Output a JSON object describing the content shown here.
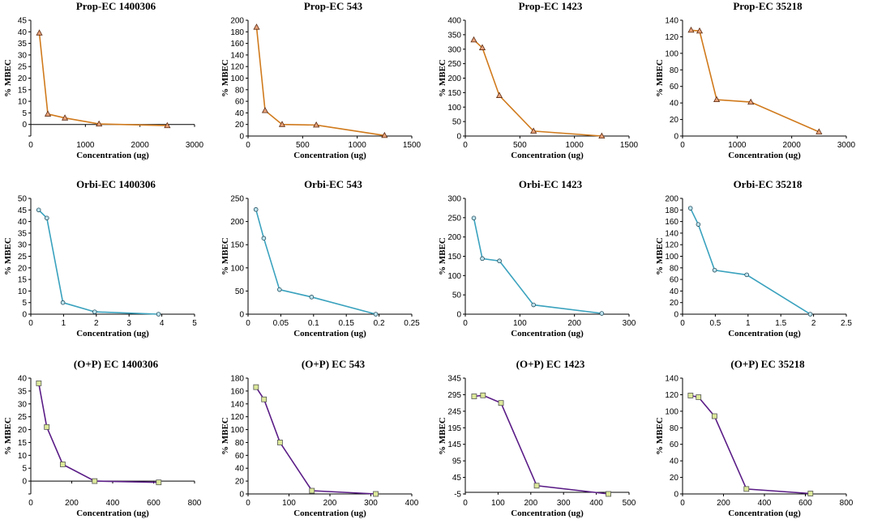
{
  "colors": {
    "prop": "#D07A1C",
    "orbi": "#3AA2BE",
    "op": "#5A1C86"
  },
  "chart_data": [
    {
      "type": "line",
      "title": "Prop-EC 1400306",
      "xlabel": "Concentration (ug)",
      "ylabel": "% MBEC",
      "marker": "triangle",
      "color": "prop",
      "xlim": [
        0,
        3000
      ],
      "xticks": [
        0,
        1000,
        2000,
        3000
      ],
      "ylim": [
        -5,
        45
      ],
      "yticks": [
        -5,
        0,
        5,
        10,
        15,
        20,
        25,
        30,
        35,
        40,
        45
      ],
      "ytick_labels": [
        "",
        "0",
        "5",
        "10",
        "15",
        "20",
        "25",
        "30",
        "35",
        "40",
        "45"
      ],
      "x": [
        156,
        312,
        625,
        1250,
        2500
      ],
      "y": [
        39.5,
        4.5,
        2.8,
        0.2,
        -0.5
      ]
    },
    {
      "type": "line",
      "title": "Prop-EC 543",
      "xlabel": "Concentration (ug)",
      "ylabel": "% MBEC",
      "marker": "triangle",
      "color": "prop",
      "xlim": [
        0,
        1500
      ],
      "xticks": [
        0,
        500,
        1000,
        1500
      ],
      "ylim": [
        0,
        200
      ],
      "yticks": [
        0,
        20,
        40,
        60,
        80,
        100,
        120,
        140,
        160,
        180,
        200
      ],
      "x": [
        78,
        156,
        312,
        625,
        1250
      ],
      "y": [
        188,
        44,
        20,
        19,
        1
      ]
    },
    {
      "type": "line",
      "title": "Prop-EC 1423",
      "xlabel": "Concentration (ug)",
      "ylabel": "% MBEC",
      "marker": "triangle",
      "color": "prop",
      "xlim": [
        0,
        1500
      ],
      "xticks": [
        0,
        500,
        1000,
        1500
      ],
      "ylim": [
        0,
        400
      ],
      "yticks": [
        0,
        50,
        100,
        150,
        200,
        250,
        300,
        350,
        400
      ],
      "x": [
        78,
        156,
        312,
        625,
        1250
      ],
      "y": [
        332,
        305,
        140,
        17,
        0
      ]
    },
    {
      "type": "line",
      "title": "Prop-EC 35218",
      "xlabel": "Concentration (ug)",
      "ylabel": "% MBEC",
      "marker": "triangle",
      "color": "prop",
      "xlim": [
        0,
        3000
      ],
      "xticks": [
        0,
        1000,
        2000,
        3000
      ],
      "ylim": [
        0,
        140
      ],
      "yticks": [
        0,
        20,
        40,
        60,
        80,
        100,
        120,
        140
      ],
      "x": [
        156,
        312,
        625,
        1250,
        2500
      ],
      "y": [
        128,
        127,
        44,
        41,
        5
      ]
    },
    {
      "type": "line",
      "title": "Orbi-EC  1400306",
      "xlabel": "Concentration (ug)",
      "ylabel": "% MBEC",
      "marker": "circle",
      "color": "orbi",
      "xlim": [
        0,
        5
      ],
      "xticks": [
        0,
        1,
        2,
        3,
        4,
        5
      ],
      "ylim": [
        0,
        50
      ],
      "yticks": [
        0,
        5,
        10,
        15,
        20,
        25,
        30,
        35,
        40,
        45,
        50
      ],
      "x": [
        0.24,
        0.49,
        0.98,
        1.95,
        3.9
      ],
      "y": [
        45,
        41.5,
        5,
        1,
        0
      ]
    },
    {
      "type": "line",
      "title": "Orbi-EC  543",
      "xlabel": "Concentration (ug)",
      "ylabel": "% MBEC",
      "marker": "circle",
      "color": "orbi",
      "xlim": [
        0,
        0.25
      ],
      "xticks": [
        0,
        0.05,
        0.1,
        0.15,
        0.2,
        0.25
      ],
      "xtick_labels": [
        "0",
        "0.05",
        "0.1",
        "0.15",
        "0.2",
        "0.25"
      ],
      "ylim": [
        0,
        250
      ],
      "yticks": [
        0,
        50,
        100,
        150,
        200,
        250
      ],
      "x": [
        0.012,
        0.024,
        0.048,
        0.097,
        0.195
      ],
      "y": [
        226,
        164,
        53,
        37,
        0
      ]
    },
    {
      "type": "line",
      "title": "Orbi-EC  1423",
      "xlabel": "Concentration (ug)",
      "ylabel": "% MBEC",
      "marker": "circle",
      "color": "orbi",
      "xlim": [
        0,
        300
      ],
      "xticks": [
        0,
        100,
        200,
        300
      ],
      "ylim": [
        0,
        300
      ],
      "yticks": [
        0,
        50,
        100,
        150,
        200,
        250,
        300
      ],
      "x": [
        15.6,
        31.2,
        62.5,
        125,
        250
      ],
      "y": [
        249,
        144,
        138,
        24,
        2
      ]
    },
    {
      "type": "line",
      "title": "Orbi-EC  35218",
      "xlabel": "Concentration (ug)",
      "ylabel": "% MBEC",
      "marker": "circle",
      "color": "orbi",
      "xlim": [
        0,
        2.5
      ],
      "xticks": [
        0,
        0.5,
        1,
        1.5,
        2,
        2.5
      ],
      "ylim": [
        0,
        200
      ],
      "yticks": [
        0,
        20,
        40,
        60,
        80,
        100,
        120,
        140,
        160,
        180,
        200
      ],
      "x": [
        0.12,
        0.24,
        0.49,
        0.98,
        1.95
      ],
      "y": [
        183,
        155,
        76,
        68,
        0
      ]
    },
    {
      "type": "line",
      "title": "(O+P) EC 1400306",
      "xlabel": "Concentration (ug)",
      "ylabel": "% MBEC",
      "marker": "square",
      "color": "op",
      "xlim": [
        0,
        800
      ],
      "xticks": [
        0,
        200,
        400,
        600,
        800
      ],
      "ylim": [
        -5,
        40
      ],
      "yticks": [
        -5,
        0,
        5,
        10,
        15,
        20,
        25,
        30,
        35,
        40
      ],
      "ytick_labels": [
        "",
        "0",
        "5",
        "10",
        "15",
        "20",
        "25",
        "30",
        "35",
        "40"
      ],
      "x": [
        39,
        78,
        156,
        312,
        625
      ],
      "y": [
        38,
        21,
        6.5,
        0,
        -0.5
      ]
    },
    {
      "type": "line",
      "title": "(O+P) EC 543",
      "xlabel": "Concentration (ug)",
      "ylabel": "% MBEC",
      "marker": "square",
      "color": "op",
      "xlim": [
        0,
        400
      ],
      "xticks": [
        0,
        100,
        200,
        300,
        400
      ],
      "ylim": [
        0,
        180
      ],
      "yticks": [
        0,
        20,
        40,
        60,
        80,
        100,
        120,
        140,
        160,
        180
      ],
      "x": [
        19.5,
        39,
        78,
        156,
        312
      ],
      "y": [
        166,
        147,
        80,
        5,
        0
      ]
    },
    {
      "type": "line",
      "title": "(O+P) EC 1423",
      "xlabel": "Concentration (ug)",
      "ylabel": "% MBEC",
      "marker": "square",
      "color": "op",
      "xlim": [
        0,
        500
      ],
      "xticks": [
        0,
        100,
        200,
        300,
        400,
        500
      ],
      "ylim": [
        -5,
        345
      ],
      "yticks": [
        -5,
        45,
        95,
        145,
        195,
        245,
        295,
        345
      ],
      "x": [
        27,
        54,
        109,
        218,
        437
      ],
      "y": [
        290,
        293,
        270,
        20,
        -5
      ]
    },
    {
      "type": "line",
      "title": "(O+P) EC 35218",
      "xlabel": "Concentration (ug)",
      "ylabel": "% MBEC",
      "marker": "square",
      "color": "op",
      "xlim": [
        0,
        800
      ],
      "xticks": [
        0,
        200,
        400,
        600,
        800
      ],
      "ylim": [
        0,
        140
      ],
      "yticks": [
        0,
        20,
        40,
        60,
        80,
        100,
        120,
        140
      ],
      "x": [
        39,
        78,
        156,
        312,
        625
      ],
      "y": [
        119,
        117,
        94,
        6,
        0.5
      ]
    }
  ]
}
